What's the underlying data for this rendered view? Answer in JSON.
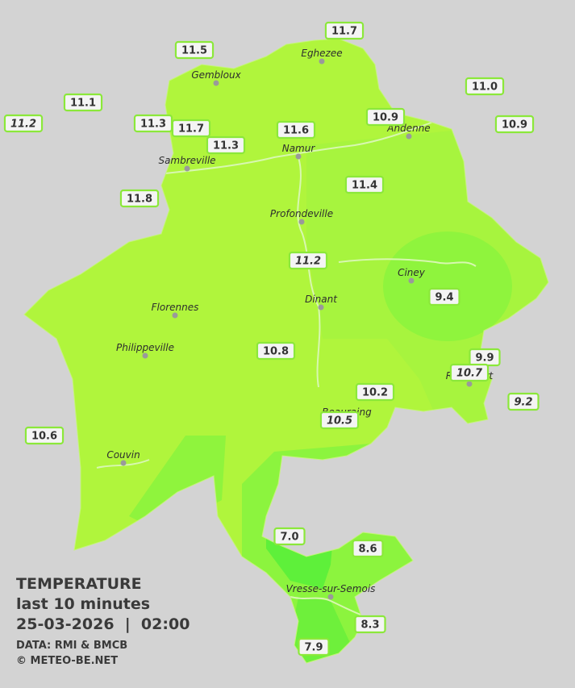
{
  "map": {
    "cities": [
      {
        "name": "Eghezee"
      },
      {
        "name": "Gembloux"
      },
      {
        "name": "Andenne"
      },
      {
        "name": "Namur"
      },
      {
        "name": "Sambreville"
      },
      {
        "name": "Profondeville"
      },
      {
        "name": "Ciney"
      },
      {
        "name": "Dinant"
      },
      {
        "name": "Florennes"
      },
      {
        "name": "Philippeville"
      },
      {
        "name": "Rochefort"
      },
      {
        "name": "Beauraing"
      },
      {
        "name": "Couvin"
      },
      {
        "name": "Vresse-sur-Semois"
      }
    ],
    "stations": [
      {
        "value": "11.7",
        "italic": false
      },
      {
        "value": "11.5",
        "italic": false
      },
      {
        "value": "11.1",
        "italic": false
      },
      {
        "value": "11.0",
        "italic": false
      },
      {
        "value": "11.2",
        "italic": true
      },
      {
        "value": "11.3",
        "italic": false
      },
      {
        "value": "11.7",
        "italic": false
      },
      {
        "value": "11.3",
        "italic": false
      },
      {
        "value": "11.6",
        "italic": false
      },
      {
        "value": "10.9",
        "italic": false
      },
      {
        "value": "10.9",
        "italic": false
      },
      {
        "value": "11.8",
        "italic": false
      },
      {
        "value": "11.4",
        "italic": false
      },
      {
        "value": "11.2",
        "italic": true
      },
      {
        "value": "9.4",
        "italic": false
      },
      {
        "value": "10.8",
        "italic": false
      },
      {
        "value": "9.9",
        "italic": false
      },
      {
        "value": "10.7",
        "italic": true
      },
      {
        "value": "10.2",
        "italic": false
      },
      {
        "value": "9.2",
        "italic": true
      },
      {
        "value": "10.5",
        "italic": true
      },
      {
        "value": "10.6",
        "italic": false
      },
      {
        "value": "7.0",
        "italic": false
      },
      {
        "value": "8.6",
        "italic": false
      },
      {
        "value": "8.3",
        "italic": false
      },
      {
        "value": "7.9",
        "italic": false
      }
    ],
    "legend": {
      "title": "TEMPERATURE",
      "subtitle": "last 10 minutes",
      "datetime": "25-03-2026  |  02:00",
      "source": "DATA: RMI & BMCB",
      "credit": "© METEO-BE.NET"
    }
  }
}
